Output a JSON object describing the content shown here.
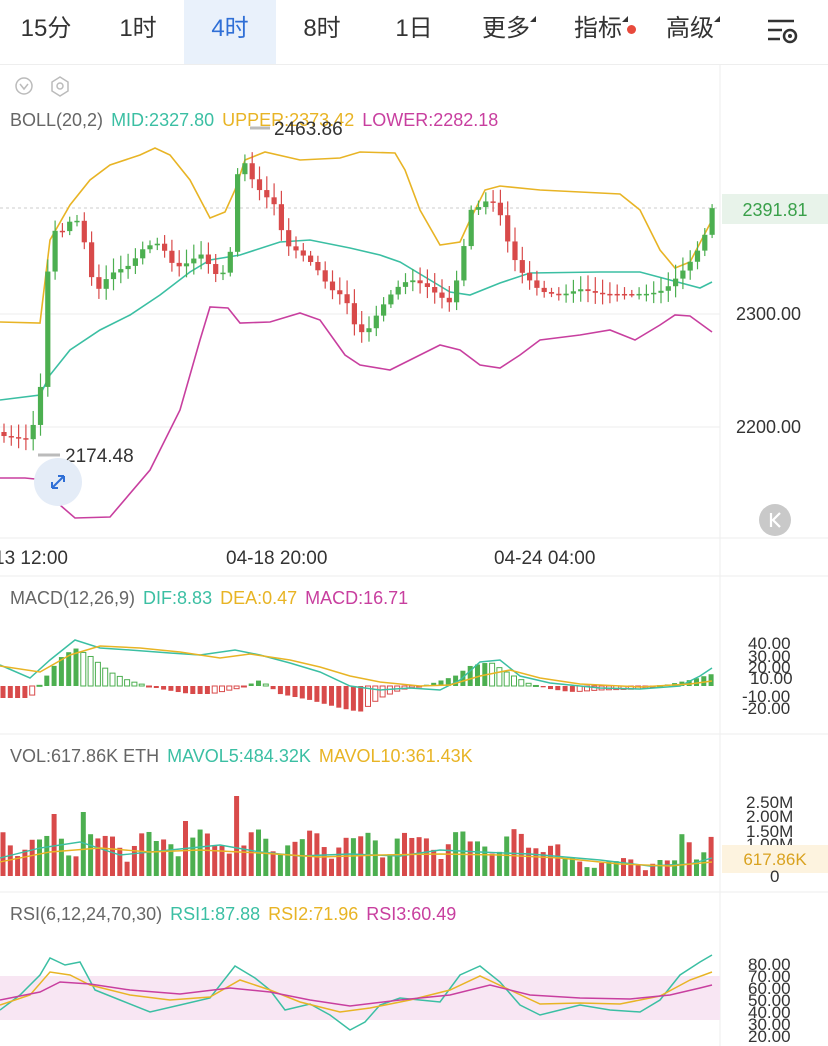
{
  "tabs": [
    {
      "label": "15分",
      "active": false
    },
    {
      "label": "1时",
      "active": false
    },
    {
      "label": "4时",
      "active": true
    },
    {
      "label": "8时",
      "active": false
    },
    {
      "label": "1日",
      "active": false
    },
    {
      "label": "更多",
      "active": false
    },
    {
      "label": "指标",
      "active": false
    },
    {
      "label": "高级",
      "active": false
    }
  ],
  "colors": {
    "up": "#4caf50",
    "down": "#d84a4a",
    "mid": "#3bbfa3",
    "upper": "#e8b425",
    "lower": "#c83f9f",
    "accent": "#2f6fd6"
  },
  "boll": {
    "name": "BOLL(20,2)",
    "mid": "MID:2327.80",
    "upper": "UPPER:2373.42",
    "lower": "LOWER:2282.18"
  },
  "macd": {
    "name": "MACD(12,26,9)",
    "dif": "DIF:8.83",
    "dea": "DEA:0.47",
    "macd": "MACD:16.71"
  },
  "vol": {
    "name": "VOL:617.86K ETH",
    "mavol5": "MAVOL5:484.32K",
    "mavol10": "MAVOL10:361.43K"
  },
  "rsi": {
    "name": "RSI(6,12,24,70,30)",
    "rsi1": "RSI1:87.88",
    "rsi2": "RSI2:71.96",
    "rsi3": "RSI3:60.49"
  },
  "chart_data": [
    {
      "type": "candlestick",
      "title": "BOLL(20,2)",
      "price_axis_ticks": [
        "2300.00",
        "2200.00"
      ],
      "current_price": "2391.81",
      "max_marker": "2463.86",
      "min_marker": "2174.48",
      "time_labels": [
        "13 12:00",
        "04-18 20:00",
        "04-24 04:00"
      ],
      "series": [
        {
          "name": "MID",
          "last": 2327.8
        },
        {
          "name": "UPPER",
          "last": 2373.42
        },
        {
          "name": "LOWER",
          "last": 2282.18
        }
      ]
    },
    {
      "type": "bar",
      "title": "MACD(12,26,9)",
      "axis_ticks": [
        "40.00",
        "30.00",
        "20.00",
        "10.00",
        "-10.00",
        "-20.00"
      ],
      "series": [
        {
          "name": "DIF",
          "last": 8.83
        },
        {
          "name": "DEA",
          "last": 0.47
        },
        {
          "name": "MACD",
          "last": 16.71
        }
      ]
    },
    {
      "type": "bar",
      "title": "VOL",
      "axis_ticks": [
        "2.50M",
        "2.00M",
        "1.50M",
        "1.00M",
        "0"
      ],
      "current_value": "617.86K",
      "series": [
        {
          "name": "VOL",
          "last": "617.86K"
        },
        {
          "name": "MAVOL5",
          "last": "484.32K"
        },
        {
          "name": "MAVOL10",
          "last": "361.43K"
        }
      ]
    },
    {
      "type": "line",
      "title": "RSI(6,12,24,70,30)",
      "axis_ticks": [
        "80.00",
        "70.00",
        "60.00",
        "50.00",
        "40.00",
        "30.00",
        "20.00"
      ],
      "series": [
        {
          "name": "RSI1",
          "last": 87.88
        },
        {
          "name": "RSI2",
          "last": 71.96
        },
        {
          "name": "RSI3",
          "last": 60.49
        }
      ]
    }
  ]
}
